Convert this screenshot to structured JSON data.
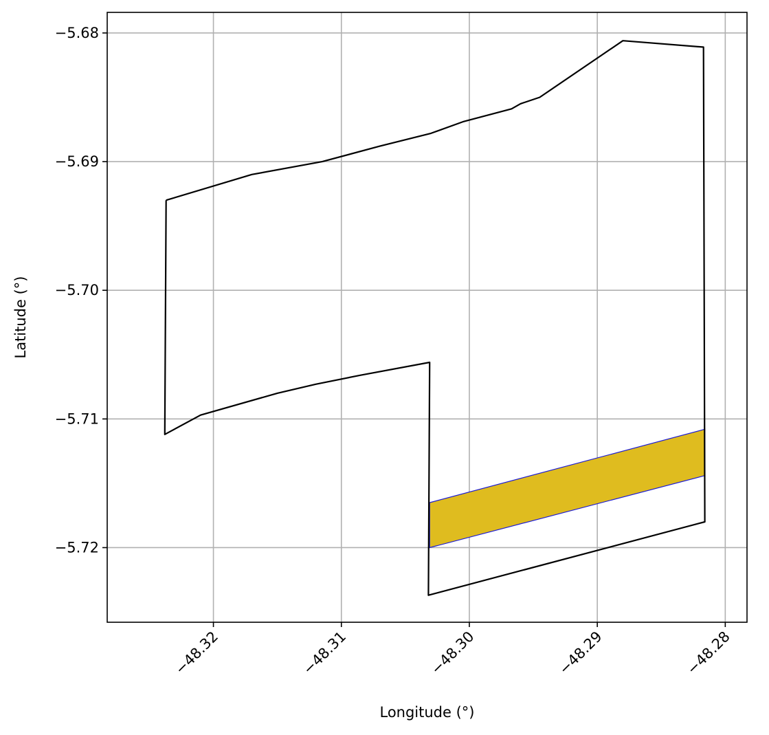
{
  "chart_data": {
    "type": "map",
    "title": "",
    "xlabel": "Longitude (°)",
    "ylabel": "Latitude (°)",
    "xlim": [
      -48.3283,
      -48.2783
    ],
    "ylim": [
      -5.7258,
      -5.6784
    ],
    "grid": true,
    "x_ticks": [
      -48.32,
      -48.31,
      -48.3,
      -48.29,
      -48.28
    ],
    "x_tick_labels": [
      "−48.32",
      "−48.31",
      "−48.30",
      "−48.29",
      "−48.28"
    ],
    "y_ticks": [
      -5.68,
      -5.69,
      -5.7,
      -5.71,
      -5.72
    ],
    "y_tick_labels": [
      "−5.68",
      "−5.69",
      "−5.70",
      "−5.71",
      "−5.72"
    ],
    "series": [
      {
        "kind": "outline",
        "stroke": "#000000",
        "fill": "none",
        "points": [
          [
            -48.3237,
            -5.693
          ],
          [
            -48.317,
            -5.691
          ],
          [
            -48.3115,
            -5.69
          ],
          [
            -48.307,
            -5.6888
          ],
          [
            -48.303,
            -5.6878
          ],
          [
            -48.3005,
            -5.6869
          ],
          [
            -48.2967,
            -5.6859
          ],
          [
            -48.296,
            -5.6855
          ],
          [
            -48.2945,
            -5.685
          ],
          [
            -48.288,
            -5.6806
          ],
          [
            -48.2817,
            -5.6811
          ],
          [
            -48.2816,
            -5.718
          ],
          [
            -48.3032,
            -5.7237
          ],
          [
            -48.3031,
            -5.7056
          ],
          [
            -48.3085,
            -5.7066
          ],
          [
            -48.312,
            -5.7073
          ],
          [
            -48.315,
            -5.708
          ],
          [
            -48.321,
            -5.7097
          ],
          [
            -48.3238,
            -5.7112
          ],
          [
            -48.3237,
            -5.693
          ]
        ]
      },
      {
        "kind": "strip",
        "stroke": "#1a1ad6",
        "fill": "#dfbc1f",
        "points": [
          [
            -48.3031,
            -5.7165
          ],
          [
            -48.2816,
            -5.7108
          ],
          [
            -48.2816,
            -5.7144
          ],
          [
            -48.3031,
            -5.72
          ],
          [
            -48.3031,
            -5.7165
          ]
        ]
      }
    ]
  }
}
